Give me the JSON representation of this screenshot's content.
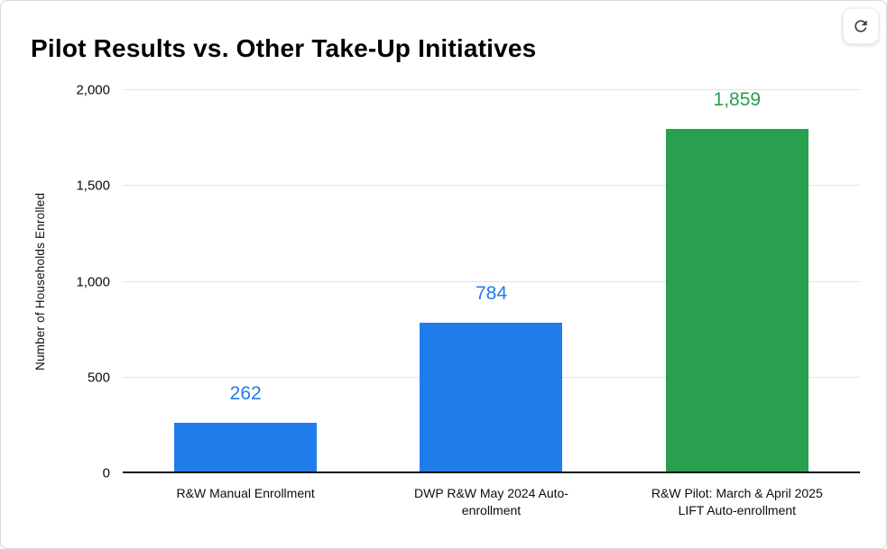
{
  "chart_data": {
    "type": "bar",
    "title": "Pilot Results vs. Other Take-Up Initiatives",
    "xlabel": "",
    "ylabel": "Number of Households Enrolled",
    "categories": [
      "R&W Manual Enrollment",
      "DWP R&W May 2024 Auto-\nenrollment",
      "R&W Pilot: March & April 2025\nLIFT Auto-enrollment"
    ],
    "values": [
      262,
      784,
      1859
    ],
    "value_labels": [
      "262",
      "784",
      "1,859"
    ],
    "bar_colors": [
      "#217ceb",
      "#217ceb",
      "#28a04d"
    ],
    "ylim": [
      0,
      2000
    ],
    "yticks": [
      0,
      500,
      1000,
      1500,
      2000
    ],
    "ytick_labels": [
      "0",
      "500",
      "1,000",
      "1,500",
      "2,000"
    ],
    "grid": "horizontal",
    "legend": "none"
  },
  "toolbar": {
    "refresh_icon": "refresh"
  },
  "colors": {
    "gridline": "#e3e3e3",
    "axis_line": "#141414",
    "title_text": "#000000",
    "tick_text": "#0d0d0d",
    "icon": "#3c4043"
  }
}
